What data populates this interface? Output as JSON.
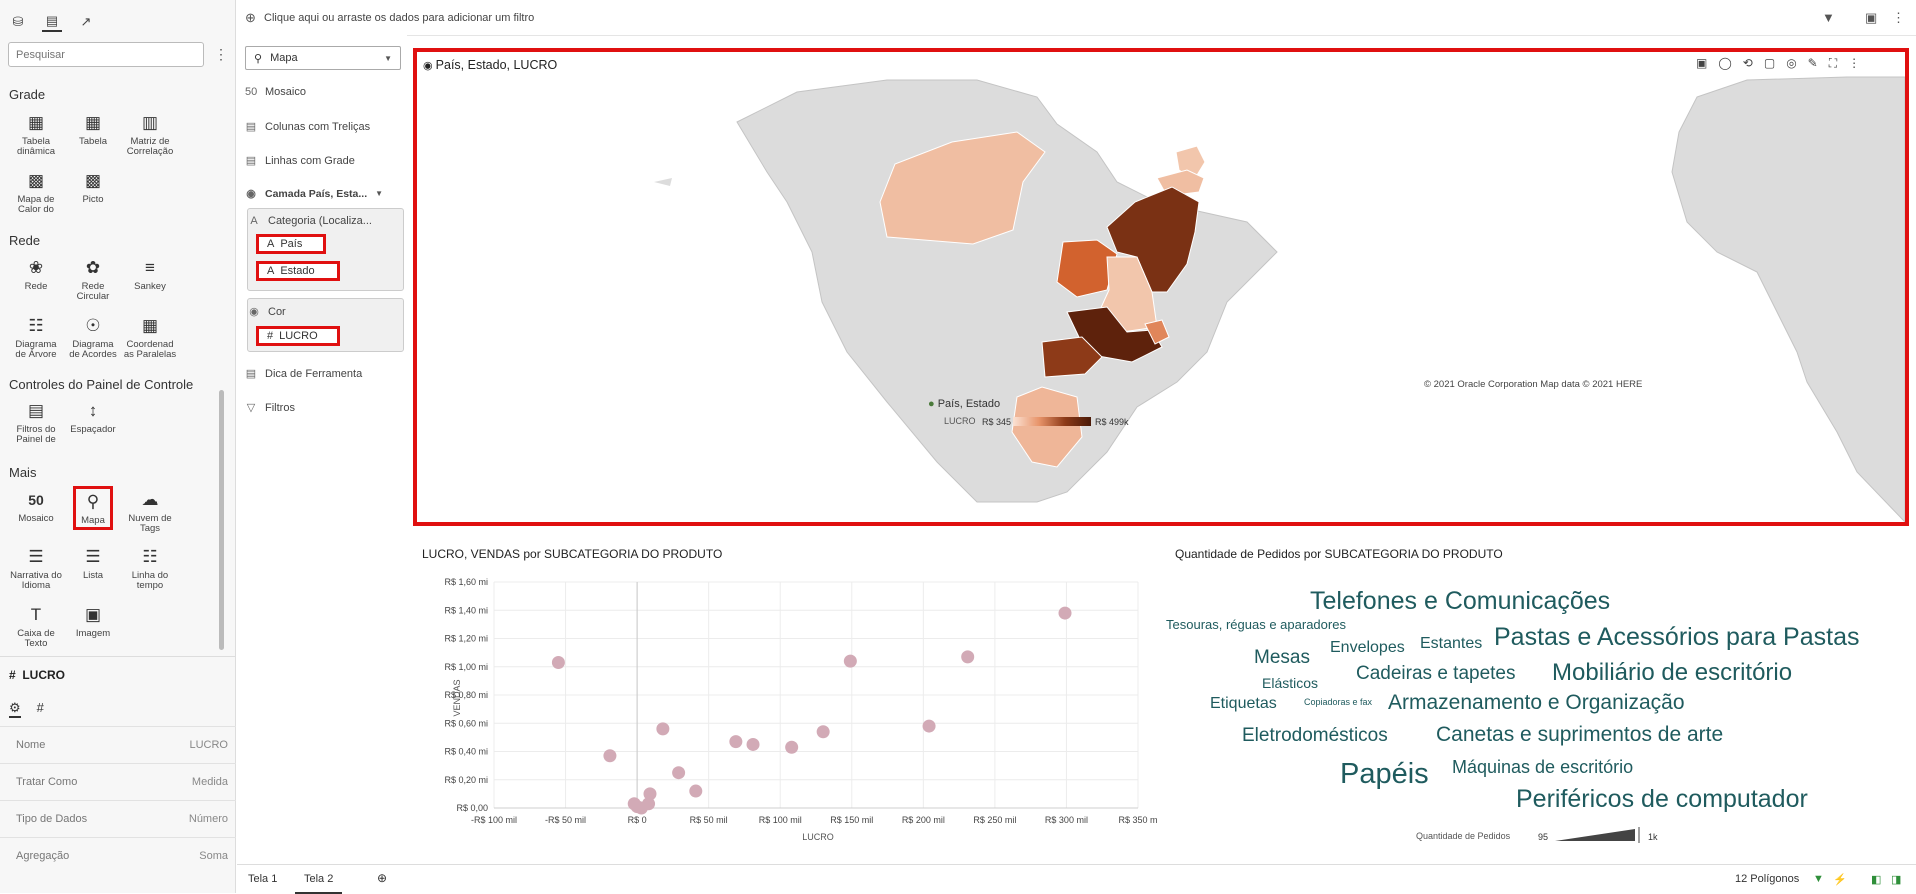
{
  "left_panel": {
    "search_placeholder": "Pesquisar",
    "sections": {
      "grade": "Grade",
      "rede": "Rede",
      "controles": "Controles do Painel de Controle",
      "mais": "Mais"
    },
    "viz": {
      "tabela_dinamica": "Tabela dinâmica",
      "tabela": "Tabela",
      "matriz": "Matriz de Correlação",
      "mapa_calor": "Mapa de Calor do",
      "picto": "Picto",
      "rede": "Rede",
      "rede_circular": "Rede Circular",
      "sankey": "Sankey",
      "diagrama_arvore": "Diagrama de Árvore",
      "diagrama_acordes": "Diagrama de Acordes",
      "coordenadas": "Coordenad as Paralelas",
      "filtros": "Filtros do Painel de",
      "espacador": "Espaçador",
      "mosaico": "Mosaico",
      "mapa": "Mapa",
      "nuvem": "Nuvem de Tags",
      "narrativa": "Narrativa do Idioma",
      "lista": "Lista",
      "linha_tempo": "Linha do tempo",
      "caixa_texto": "Caixa de Texto",
      "imagem": "Imagem"
    },
    "props": {
      "title": "LUCRO",
      "rows": [
        {
          "k": "Nome",
          "v": "LUCRO"
        },
        {
          "k": "Tratar Como",
          "v": "Medida"
        },
        {
          "k": "Tipo de Dados",
          "v": "Número"
        },
        {
          "k": "Agregação",
          "v": "Soma"
        }
      ]
    }
  },
  "grammar": {
    "viz_type": "Mapa",
    "items": {
      "mosaico": "Mosaico",
      "colunas": "Colunas com Treliças",
      "linhas": "Linhas com Grade",
      "camada": "Camada País, Esta...",
      "categoria": "Categoria (Localiza...",
      "pais": "País",
      "estado": "Estado",
      "cor": "Cor",
      "lucro": "LUCRO",
      "dica": "Dica de Ferramenta",
      "filtros": "Filtros"
    }
  },
  "filterbar": {
    "hint": "Clique aqui ou arraste os dados para adicionar um filtro"
  },
  "map": {
    "title": "País, Estado, LUCRO",
    "copyright": "© 2021 Oracle Corporation   Map data © 2021 HERE",
    "layer_legend": "País, Estado",
    "color_label": "LUCRO",
    "min": "R$ 345",
    "max": "R$ 499k",
    "colors": {
      "low": "#f5cbb3",
      "high": "#6b2a10",
      "land": "#dcdcdc"
    }
  },
  "scatter": {
    "title": "LUCRO, VENDAS por SUBCATEGORIA DO PRODUTO",
    "chart_data": {
      "type": "scatter",
      "title": "LUCRO, VENDAS por SUBCATEGORIA DO PRODUTO",
      "xlabel": "LUCRO",
      "ylabel": "VENDAS",
      "x_ticks": [
        "-R$ 100 mil",
        "-R$ 50 mil",
        "R$ 0",
        "R$ 50 mil",
        "R$ 100 mil",
        "R$ 150 mil",
        "R$ 200 mil",
        "R$ 250 mil",
        "R$ 300 mil",
        "R$ 350 m"
      ],
      "y_ticks": [
        "R$ 0,00",
        "R$ 0,20 mi",
        "R$ 0,40 mi",
        "R$ 0,60 mi",
        "R$ 0,80 mi",
        "R$ 1,00 mi",
        "R$ 1,20 mi",
        "R$ 1,40 mi",
        "R$ 1,60 mi"
      ],
      "xlim": [
        -100,
        350
      ],
      "ylim": [
        0,
        1.6
      ],
      "points": [
        {
          "x": -55,
          "y": 1.03
        },
        {
          "x": -19,
          "y": 0.37
        },
        {
          "x": -2,
          "y": 0.03
        },
        {
          "x": 0,
          "y": 0.01
        },
        {
          "x": 3,
          "y": 0.0
        },
        {
          "x": 8,
          "y": 0.03
        },
        {
          "x": 9,
          "y": 0.1
        },
        {
          "x": 18,
          "y": 0.56
        },
        {
          "x": 29,
          "y": 0.25
        },
        {
          "x": 41,
          "y": 0.12
        },
        {
          "x": 69,
          "y": 0.47
        },
        {
          "x": 81,
          "y": 0.45
        },
        {
          "x": 108,
          "y": 0.43
        },
        {
          "x": 130,
          "y": 0.54
        },
        {
          "x": 149,
          "y": 1.04
        },
        {
          "x": 204,
          "y": 0.58
        },
        {
          "x": 231,
          "y": 1.07
        },
        {
          "x": 299,
          "y": 1.38
        }
      ],
      "point_color": "#d2aab6"
    }
  },
  "cloud": {
    "title": "Quantidade de Pedidos por SUBCATEGORIA DO PRODUTO",
    "words": [
      {
        "t": "Telefones e Comunicações",
        "s": 25
      },
      {
        "t": "Tesouras, réguas e aparadores",
        "s": 13
      },
      {
        "t": "Envelopes",
        "s": 16
      },
      {
        "t": "Estantes",
        "s": 16
      },
      {
        "t": "Pastas e Acessórios para Pastas",
        "s": 25
      },
      {
        "t": "Mesas",
        "s": 19
      },
      {
        "t": "Cadeiras e tapetes",
        "s": 19
      },
      {
        "t": "Mobiliário de escritório",
        "s": 24
      },
      {
        "t": "Elásticos",
        "s": 14
      },
      {
        "t": "Etiquetas",
        "s": 16
      },
      {
        "t": "Copiadoras e fax",
        "s": 9
      },
      {
        "t": "Armazenamento e Organização",
        "s": 21
      },
      {
        "t": "Eletrodomésticos",
        "s": 19
      },
      {
        "t": "Canetas e suprimentos de arte",
        "s": 21
      },
      {
        "t": "Papéis",
        "s": 29
      },
      {
        "t": "Máquinas de escritório",
        "s": 18
      },
      {
        "t": "Periféricos de computador",
        "s": 25
      }
    ],
    "legend_label": "Quantidade de Pedidos",
    "legend_min": "95",
    "legend_max": "1k"
  },
  "tabs": {
    "t1": "Tela 1",
    "t2": "Tela 2",
    "status": "12 Polígonos"
  }
}
